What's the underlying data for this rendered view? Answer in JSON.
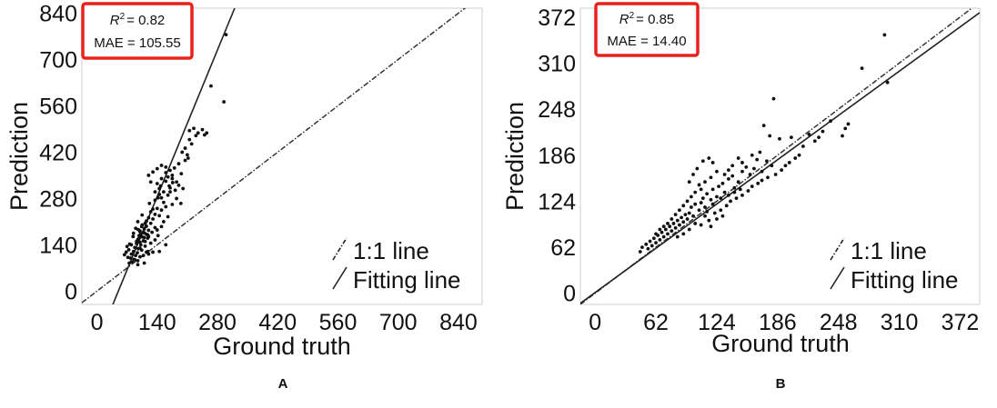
{
  "chart_data": [
    {
      "type": "scatter",
      "panel_label": "A",
      "xlabel": "Ground truth",
      "ylabel": "Prediction",
      "xlim": [
        -35,
        895
      ],
      "ylim": [
        -40,
        855
      ],
      "xticks": [
        0,
        140,
        280,
        420,
        560,
        700,
        840
      ],
      "yticks": [
        0,
        140,
        280,
        420,
        560,
        700,
        840
      ],
      "stats": {
        "r2_label": "R",
        "r2_sup": "2",
        "r2_value": "= 0.82",
        "mae": "MAE = 105.55"
      },
      "legend": {
        "one_to_one": "1:1 line",
        "fitting": "Fitting line",
        "position": "bottom-right"
      },
      "one_to_one_line": [
        [
          -35,
          -35
        ],
        [
          895,
          895
        ]
      ],
      "fitting_line": [
        [
          37,
          -40
        ],
        [
          320,
          855
        ]
      ],
      "points": [
        [
          300,
          775
        ],
        [
          265,
          620
        ],
        [
          295,
          572
        ],
        [
          225,
          492
        ],
        [
          215,
          485
        ],
        [
          235,
          478
        ],
        [
          245,
          488
        ],
        [
          250,
          472
        ],
        [
          255,
          478
        ],
        [
          230,
          470
        ],
        [
          215,
          458
        ],
        [
          220,
          445
        ],
        [
          205,
          432
        ],
        [
          198,
          420
        ],
        [
          210,
          412
        ],
        [
          190,
          385
        ],
        [
          180,
          372
        ],
        [
          170,
          365
        ],
        [
          160,
          358
        ],
        [
          175,
          350
        ],
        [
          165,
          345
        ],
        [
          150,
          340
        ],
        [
          160,
          332
        ],
        [
          140,
          325
        ],
        [
          148,
          318
        ],
        [
          170,
          312
        ],
        [
          182,
          305
        ],
        [
          155,
          300
        ],
        [
          145,
          292
        ],
        [
          165,
          290
        ],
        [
          150,
          282
        ],
        [
          135,
          275
        ],
        [
          155,
          268
        ],
        [
          175,
          262
        ],
        [
          160,
          255
        ],
        [
          140,
          250
        ],
        [
          150,
          245
        ],
        [
          125,
          240
        ],
        [
          135,
          232
        ],
        [
          145,
          228
        ],
        [
          120,
          222
        ],
        [
          130,
          218
        ],
        [
          115,
          212
        ],
        [
          125,
          205
        ],
        [
          105,
          200
        ],
        [
          115,
          196
        ],
        [
          135,
          192
        ],
        [
          110,
          188
        ],
        [
          120,
          184
        ],
        [
          100,
          180
        ],
        [
          110,
          176
        ],
        [
          115,
          172
        ],
        [
          98,
          168
        ],
        [
          105,
          164
        ],
        [
          118,
          160
        ],
        [
          95,
          156
        ],
        [
          108,
          152
        ],
        [
          100,
          148
        ],
        [
          92,
          144
        ],
        [
          102,
          140
        ],
        [
          112,
          136
        ],
        [
          88,
          132
        ],
        [
          96,
          128
        ],
        [
          104,
          124
        ],
        [
          85,
          120
        ],
        [
          94,
          116
        ],
        [
          80,
          112
        ],
        [
          90,
          108
        ],
        [
          100,
          104
        ],
        [
          78,
          100
        ],
        [
          86,
          96
        ],
        [
          95,
          92
        ],
        [
          82,
          88
        ],
        [
          110,
          85
        ],
        [
          74,
          125
        ],
        [
          68,
          118
        ],
        [
          64,
          110
        ],
        [
          72,
          102
        ],
        [
          80,
          140
        ],
        [
          120,
          165
        ],
        [
          128,
          178
        ],
        [
          140,
          185
        ],
        [
          150,
          195
        ],
        [
          155,
          210
        ],
        [
          165,
          225
        ],
        [
          135,
          300
        ],
        [
          145,
          310
        ],
        [
          125,
          330
        ],
        [
          120,
          350
        ],
        [
          130,
          360
        ],
        [
          140,
          370
        ],
        [
          150,
          380
        ],
        [
          160,
          375
        ],
        [
          175,
          340
        ],
        [
          185,
          330
        ],
        [
          190,
          320
        ],
        [
          200,
          310
        ],
        [
          170,
          300
        ],
        [
          185,
          280
        ],
        [
          195,
          265
        ],
        [
          105,
          230
        ],
        [
          95,
          210
        ],
        [
          90,
          190
        ],
        [
          85,
          175
        ],
        [
          98,
          160
        ],
        [
          112,
          150
        ],
        [
          125,
          145
        ],
        [
          135,
          155
        ],
        [
          142,
          168
        ],
        [
          118,
          120
        ],
        [
          100,
          130
        ],
        [
          92,
          150
        ],
        [
          84,
          165
        ],
        [
          76,
          142
        ],
        [
          70,
          135
        ],
        [
          108,
          108
        ],
        [
          120,
          112
        ],
        [
          96,
          186
        ],
        [
          104,
          195
        ],
        [
          112,
          205
        ],
        [
          130,
          248
        ],
        [
          122,
          265
        ],
        [
          142,
          282
        ],
        [
          168,
          318
        ],
        [
          176,
          328
        ],
        [
          205,
          395
        ],
        [
          212,
          402
        ],
        [
          196,
          355
        ],
        [
          160,
          140
        ],
        [
          145,
          120
        ],
        [
          130,
          118
        ],
        [
          88,
          95
        ],
        [
          75,
          85
        ],
        [
          95,
          80
        ],
        [
          115,
          118
        ],
        [
          102,
          172
        ],
        [
          110,
          162
        ],
        [
          118,
          170
        ],
        [
          108,
          178
        ],
        [
          100,
          182
        ]
      ]
    },
    {
      "type": "scatter",
      "panel_label": "B",
      "xlabel": "Ground truth",
      "ylabel": "Prediction",
      "xlim": [
        -15,
        392
      ],
      "ylim": [
        -15,
        384
      ],
      "xticks": [
        0,
        62,
        124,
        186,
        248,
        310,
        372
      ],
      "yticks": [
        0,
        62,
        124,
        186,
        248,
        310,
        372
      ],
      "stats": {
        "r2_label": "R",
        "r2_sup": "2",
        "r2_value": "= 0.85",
        "mae": "MAE = 14.40"
      },
      "legend": {
        "one_to_one": "1:1 line",
        "fitting": "Fitting line",
        "position": "bottom-right"
      },
      "one_to_one_line": [
        [
          -15,
          -15
        ],
        [
          392,
          392
        ]
      ],
      "fitting_line": [
        [
          -15,
          -13.5
        ],
        [
          392,
          378
        ]
      ],
      "points": [
        [
          295,
          348
        ],
        [
          272,
          303
        ],
        [
          298,
          284
        ],
        [
          182,
          262
        ],
        [
          178,
          212
        ],
        [
          188,
          208
        ],
        [
          172,
          226
        ],
        [
          200,
          210
        ],
        [
          212,
          198
        ],
        [
          224,
          205
        ],
        [
          228,
          210
        ],
        [
          218,
          214
        ],
        [
          232,
          218
        ],
        [
          252,
          212
        ],
        [
          255,
          222
        ],
        [
          258,
          228
        ],
        [
          240,
          232
        ],
        [
          168,
          190
        ],
        [
          160,
          186
        ],
        [
          165,
          180
        ],
        [
          175,
          178
        ],
        [
          180,
          172
        ],
        [
          170,
          164
        ],
        [
          162,
          168
        ],
        [
          154,
          170
        ],
        [
          158,
          160
        ],
        [
          150,
          164
        ],
        [
          140,
          158
        ],
        [
          146,
          150
        ],
        [
          136,
          154
        ],
        [
          130,
          148
        ],
        [
          142,
          142
        ],
        [
          126,
          144
        ],
        [
          132,
          136
        ],
        [
          120,
          140
        ],
        [
          124,
          130
        ],
        [
          114,
          134
        ],
        [
          118,
          126
        ],
        [
          110,
          128
        ],
        [
          108,
          122
        ],
        [
          112,
          116
        ],
        [
          102,
          120
        ],
        [
          106,
          112
        ],
        [
          98,
          116
        ],
        [
          96,
          108
        ],
        [
          100,
          104
        ],
        [
          92,
          106
        ],
        [
          94,
          100
        ],
        [
          88,
          102
        ],
        [
          90,
          96
        ],
        [
          84,
          98
        ],
        [
          86,
          92
        ],
        [
          80,
          94
        ],
        [
          82,
          88
        ],
        [
          76,
          90
        ],
        [
          78,
          84
        ],
        [
          72,
          86
        ],
        [
          74,
          80
        ],
        [
          68,
          82
        ],
        [
          70,
          76
        ],
        [
          64,
          78
        ],
        [
          66,
          72
        ],
        [
          60,
          74
        ],
        [
          62,
          68
        ],
        [
          56,
          70
        ],
        [
          58,
          64
        ],
        [
          52,
          66
        ],
        [
          54,
          60
        ],
        [
          48,
          62
        ],
        [
          46,
          56
        ],
        [
          104,
          168
        ],
        [
          110,
          178
        ],
        [
          116,
          182
        ],
        [
          120,
          176
        ],
        [
          100,
          160
        ],
        [
          96,
          150
        ],
        [
          106,
          146
        ],
        [
          114,
          110
        ],
        [
          122,
          108
        ],
        [
          128,
          112
        ],
        [
          134,
          118
        ],
        [
          138,
          124
        ],
        [
          144,
          128
        ],
        [
          150,
          132
        ],
        [
          156,
          138
        ],
        [
          160,
          144
        ],
        [
          166,
          148
        ],
        [
          170,
          152
        ],
        [
          176,
          156
        ],
        [
          184,
          160
        ],
        [
          190,
          166
        ],
        [
          194,
          172
        ],
        [
          198,
          176
        ],
        [
          204,
          182
        ],
        [
          208,
          186
        ],
        [
          150,
          176
        ],
        [
          146,
          182
        ],
        [
          140,
          172
        ],
        [
          136,
          166
        ],
        [
          132,
          160
        ],
        [
          124,
          164
        ],
        [
          118,
          156
        ],
        [
          112,
          150
        ],
        [
          108,
          140
        ],
        [
          102,
          136
        ],
        [
          98,
          130
        ],
        [
          94,
          124
        ],
        [
          90,
          118
        ],
        [
          86,
          112
        ],
        [
          82,
          106
        ],
        [
          78,
          100
        ],
        [
          74,
          94
        ],
        [
          70,
          90
        ],
        [
          66,
          86
        ],
        [
          62,
          80
        ],
        [
          108,
          92
        ],
        [
          116,
          98
        ],
        [
          124,
          100
        ],
        [
          130,
          104
        ],
        [
          118,
          90
        ],
        [
          96,
          86
        ],
        [
          90,
          80
        ],
        [
          84,
          76
        ],
        [
          102,
          94
        ],
        [
          112,
          104
        ],
        [
          120,
          120
        ],
        [
          128,
          128
        ],
        [
          136,
          132
        ],
        [
          142,
          136
        ],
        [
          148,
          140
        ]
      ]
    }
  ],
  "figure": {
    "panel_letters": [
      "A",
      "B"
    ],
    "stats_box_color": "#e8221b",
    "point_color": "#111111"
  }
}
